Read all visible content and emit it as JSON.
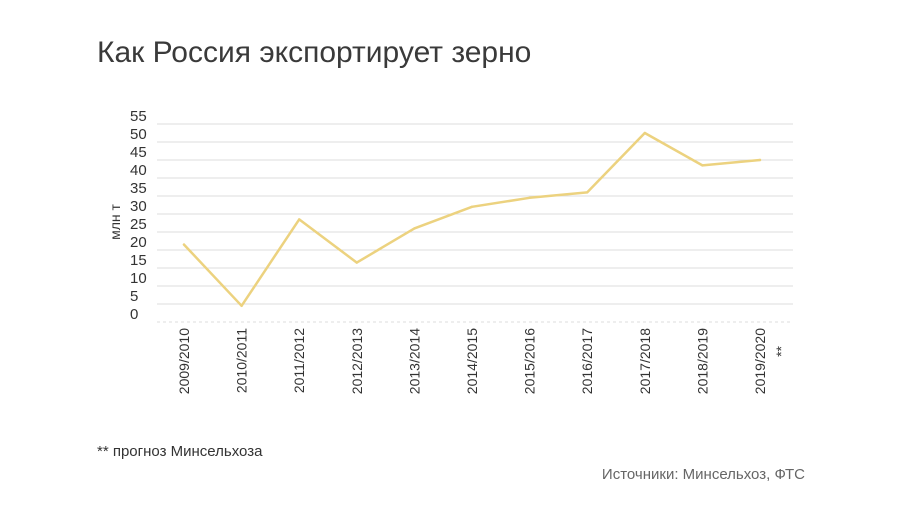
{
  "title": "Как Россия экспортирует зерно",
  "footnote": "** прогноз Минсельхоза",
  "sources": "Источники: Минсельхоз, ФТС",
  "colors": {
    "line": "#ecd27f",
    "grid": "#dddddd",
    "text": "#333333"
  },
  "chart_data": {
    "type": "line",
    "title": "Как Россия экспортирует зерно",
    "xlabel": "",
    "ylabel": "млн т",
    "ylim": [
      0,
      55
    ],
    "yticks": [
      0,
      5,
      10,
      15,
      20,
      25,
      30,
      35,
      40,
      45,
      50,
      55
    ],
    "grid": true,
    "categories": [
      "2009/2010",
      "2010/2011",
      "2011/2012",
      "2012/2013",
      "2013/2014",
      "2014/2015",
      "2015/2016",
      "2016/2017",
      "2017/2018",
      "2018/2019",
      "2019/2020"
    ],
    "category_marker": "**",
    "series": [
      {
        "values": [
          21.5,
          4.5,
          28.5,
          16.5,
          26,
          32,
          34.5,
          36,
          52.5,
          43.5,
          45
        ]
      }
    ]
  }
}
